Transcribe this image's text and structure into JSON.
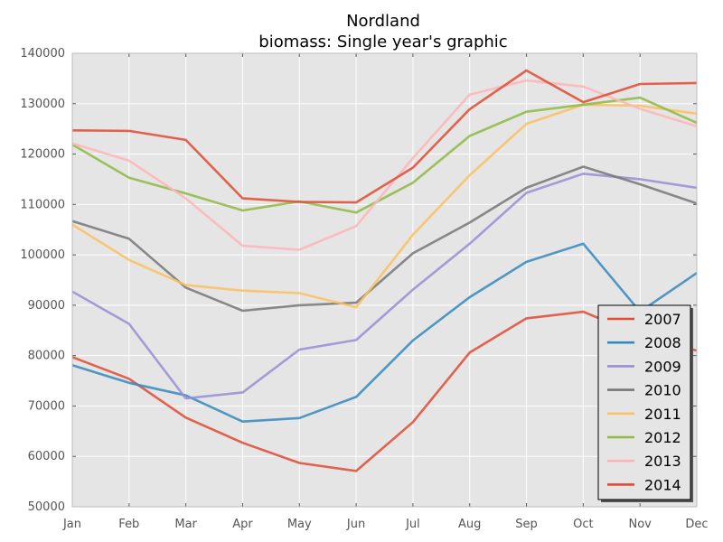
{
  "chart_data": {
    "type": "line",
    "title": "Nordland",
    "subtitle": "biomass: Single year's graphic",
    "xlabel": "",
    "ylabel": "",
    "categories": [
      "Jan",
      "Feb",
      "Mar",
      "Apr",
      "May",
      "Jun",
      "Jul",
      "Aug",
      "Sep",
      "Oct",
      "Nov",
      "Dec"
    ],
    "ylim": [
      50000,
      140000
    ],
    "yticks": [
      50000,
      60000,
      70000,
      80000,
      90000,
      100000,
      110000,
      120000,
      130000,
      140000
    ],
    "ytick_labels": [
      "50000",
      "60000",
      "70000",
      "80000",
      "90000",
      "100000",
      "110000",
      "120000",
      "130000",
      "140000"
    ],
    "grid": true,
    "legend_position": "bottom-right",
    "series": [
      {
        "name": "2007",
        "color": "#e24a33",
        "values": [
          79700,
          75400,
          67700,
          62700,
          58700,
          57100,
          66800,
          80600,
          87400,
          88700,
          84000,
          81000
        ]
      },
      {
        "name": "2008",
        "color": "#348abd",
        "values": [
          78100,
          74600,
          72100,
          66900,
          67600,
          71800,
          83000,
          91600,
          98600,
          102200,
          88700,
          96400
        ]
      },
      {
        "name": "2009",
        "color": "#988ed5",
        "values": [
          92700,
          86300,
          71500,
          72700,
          81200,
          83100,
          93100,
          102200,
          112300,
          116100,
          115000,
          113300
        ]
      },
      {
        "name": "2010",
        "color": "#777777",
        "values": [
          106700,
          103200,
          93500,
          88900,
          90000,
          90500,
          100300,
          106400,
          113300,
          117500,
          114000,
          110200
        ]
      },
      {
        "name": "2011",
        "color": "#fbc15e",
        "values": [
          106000,
          99000,
          94000,
          92900,
          92400,
          89600,
          104000,
          115800,
          126000,
          129800,
          129600,
          128000
        ]
      },
      {
        "name": "2012",
        "color": "#8eba42",
        "values": [
          121900,
          115300,
          112200,
          108800,
          110600,
          108400,
          114300,
          123600,
          128400,
          129800,
          131200,
          126200
        ]
      },
      {
        "name": "2013",
        "color": "#ffb5b8",
        "values": [
          122100,
          118700,
          111200,
          101800,
          101000,
          105700,
          119200,
          131800,
          134600,
          133400,
          129000,
          125500
        ]
      },
      {
        "name": "2014",
        "color": "#e24a33",
        "values": [
          124700,
          124600,
          122800,
          111200,
          110500,
          110400,
          117300,
          128900,
          136600,
          130300,
          133900,
          134100
        ]
      }
    ]
  }
}
